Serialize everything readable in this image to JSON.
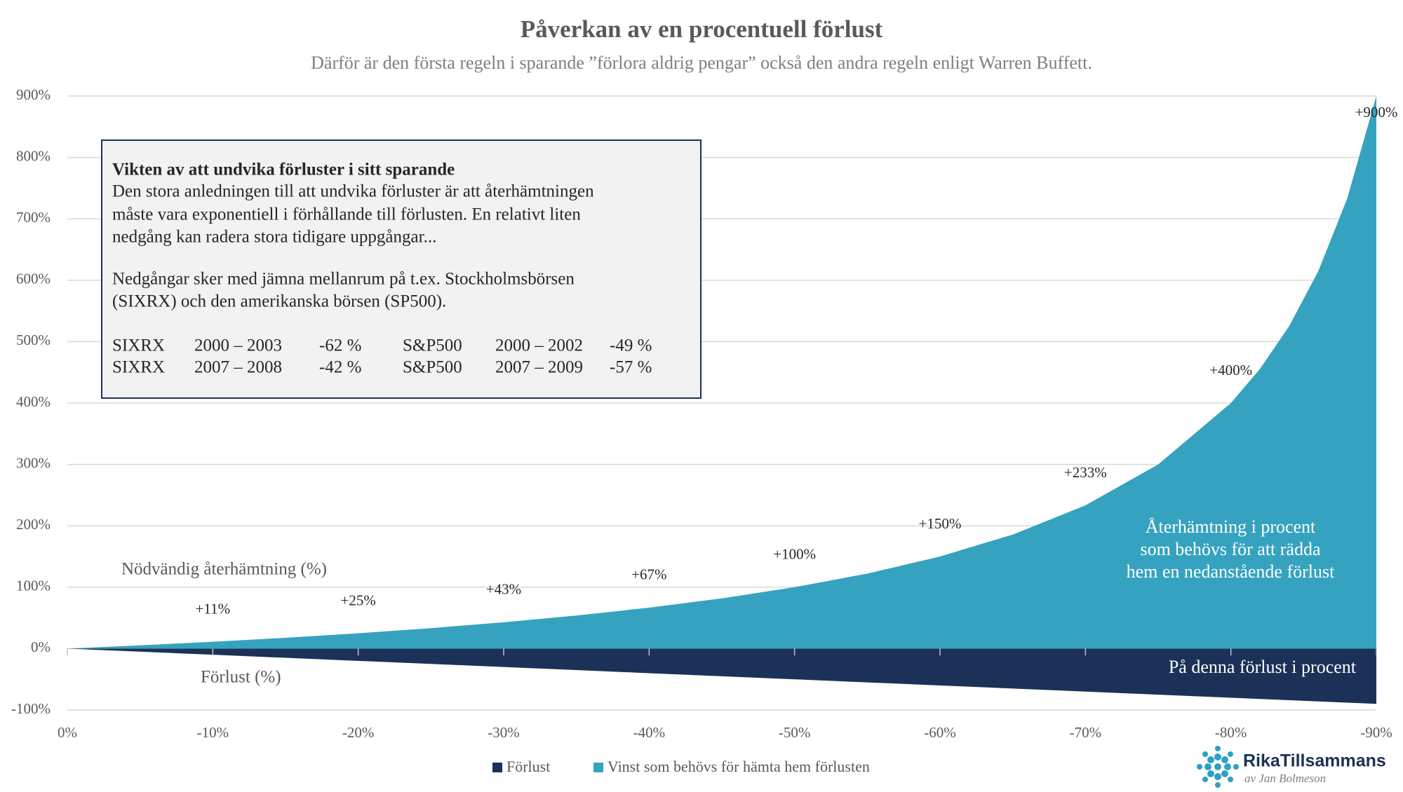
{
  "chart_data": {
    "type": "area",
    "title": "Påverkan av en procentuell förlust",
    "subtitle": "Därför är den första regeln i sparande ”förlora aldrig pengar” också den andra regeln enligt Warren Buffett.",
    "x": [
      0,
      -5,
      -10,
      -15,
      -20,
      -25,
      -30,
      -35,
      -40,
      -45,
      -50,
      -55,
      -60,
      -65,
      -70,
      -75,
      -80,
      -82,
      -84,
      -86,
      -88,
      -90
    ],
    "series": [
      {
        "name": "Förlust",
        "color": "#1b3157",
        "values": [
          0,
          -5,
          -10,
          -15,
          -20,
          -25,
          -30,
          -35,
          -40,
          -45,
          -50,
          -55,
          -60,
          -65,
          -70,
          -75,
          -80,
          -82,
          -84,
          -86,
          -88,
          -90
        ]
      },
      {
        "name": "Vinst som behövs för hämta hem förlusten",
        "color": "#35a3bf",
        "values": [
          0,
          5.3,
          11.1,
          17.6,
          25,
          33.3,
          42.9,
          53.8,
          66.7,
          81.8,
          100,
          122.2,
          150,
          185.7,
          233.3,
          300,
          400,
          455.6,
          525,
          614.3,
          733.3,
          900
        ]
      }
    ],
    "data_labels": {
      "x": [
        -10,
        -20,
        -30,
        -40,
        -50,
        -60,
        -70,
        -80,
        -90
      ],
      "values": [
        11,
        25,
        43,
        67,
        100,
        150,
        233,
        400,
        900
      ],
      "value_labels": [
        "+11%",
        "+25%",
        "+43%",
        "+67%",
        "+100%",
        "+150%",
        "+233%",
        "+400%",
        "+900%"
      ]
    },
    "xlim": [
      0,
      -90
    ],
    "xticks": [
      {
        "value": 0,
        "label": "0%"
      },
      {
        "value": -10,
        "label": "-10%"
      },
      {
        "value": -20,
        "label": "-20%"
      },
      {
        "value": -30,
        "label": "-30%"
      },
      {
        "value": -40,
        "label": "-40%"
      },
      {
        "value": -50,
        "label": "-50%"
      },
      {
        "value": -60,
        "label": "-60%"
      },
      {
        "value": -70,
        "label": "-70%"
      },
      {
        "value": -80,
        "label": "-80%"
      },
      {
        "value": -90,
        "label": "-90%"
      }
    ],
    "ylim": [
      -100,
      900
    ],
    "yticks": [
      {
        "value": -100,
        "label": "-100%"
      },
      {
        "value": 0,
        "label": "0%"
      },
      {
        "value": 100,
        "label": "100%"
      },
      {
        "value": 200,
        "label": "200%"
      },
      {
        "value": 300,
        "label": "300%"
      },
      {
        "value": 400,
        "label": "400%"
      },
      {
        "value": 500,
        "label": "500%"
      },
      {
        "value": 600,
        "label": "600%"
      },
      {
        "value": 700,
        "label": "700%"
      },
      {
        "value": 800,
        "label": "800%"
      },
      {
        "value": 900,
        "label": "900%"
      }
    ],
    "grid": true,
    "legend": "bottom",
    "annotations": {
      "gain_label": "Nödvändig återhämtning (%)",
      "loss_label": "Förlust (%)",
      "gain_area_text": [
        "Återhämtning i procent",
        "som behövs för att rädda",
        "hem en nedanstående förlust"
      ],
      "loss_area_text": "På denna förlust i procent"
    },
    "info_box": {
      "title": "Vikten av att undvika förluster i sitt sparande",
      "paragraph1": [
        "Den stora anledningen till att undvika förluster är att återhämtningen",
        "måste vara exponentiell i förhållande till förlusten. En relativt liten",
        "nedgång kan radera stora tidigare uppgångar..."
      ],
      "paragraph2": [
        "Nedgångar sker med jämna mellanrum på t.ex. Stockholmsbörsen",
        "(SIXRX) och den amerikanska börsen (SP500)."
      ],
      "rows": [
        [
          "SIXRX",
          "2000 – 2003",
          "-62 %",
          "S&P500",
          "2000 – 2002",
          "-49 %"
        ],
        [
          "SIXRX",
          "2007 – 2008",
          "-42 %",
          "S&P500",
          "2007 – 2009",
          "-57 %"
        ]
      ]
    },
    "logo": {
      "name": "RikaTillsammans",
      "byline": "av Jan Bolmeson"
    }
  }
}
